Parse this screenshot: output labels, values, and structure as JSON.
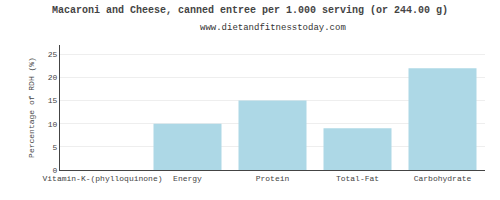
{
  "chart_data": {
    "type": "bar",
    "title": "Macaroni and Cheese, canned entree per 1.000 serving (or 244.00 g)",
    "subtitle": "www.dietandfitnesstoday.com",
    "categories": [
      "Vitamin-K-(phylloquinone)",
      "Energy",
      "Protein",
      "Total-Fat",
      "Carbohydrate"
    ],
    "values": [
      0,
      10,
      15,
      9,
      22
    ],
    "color": "#add8e6",
    "ylabel": "Percentage of RDH (%)",
    "ylim": [
      0,
      27
    ],
    "yticks": [
      0,
      5,
      10,
      15,
      20,
      25
    ],
    "grid": true
  }
}
